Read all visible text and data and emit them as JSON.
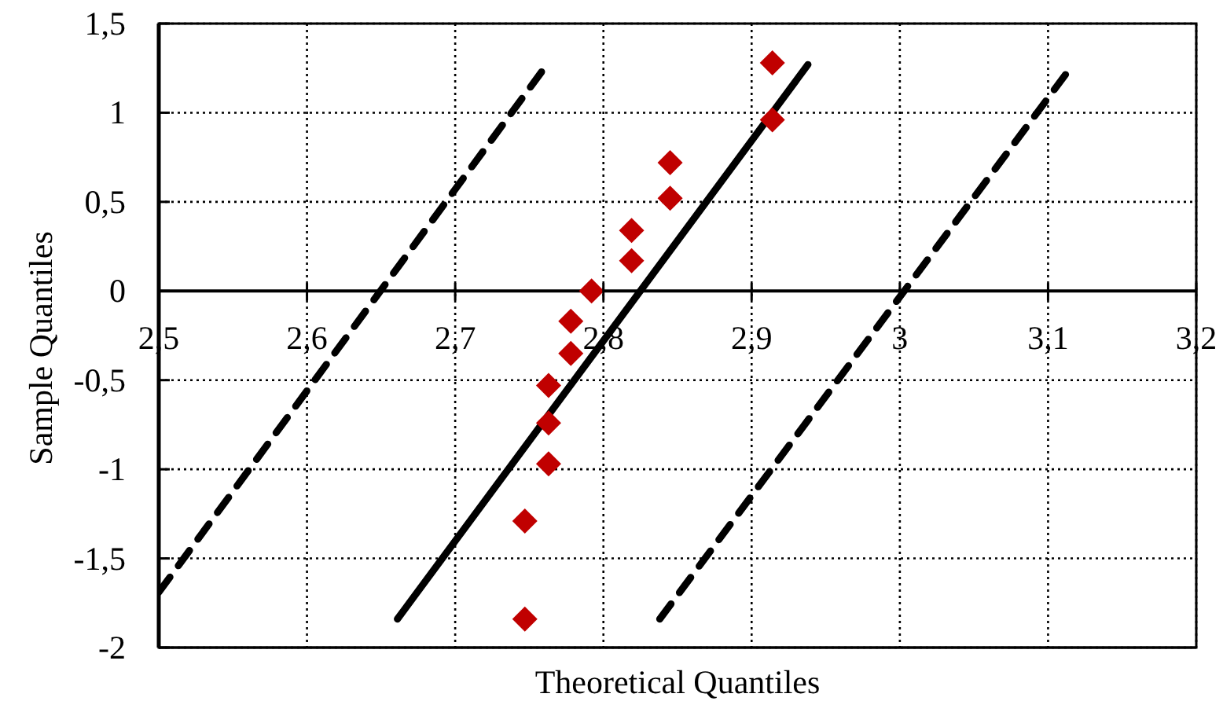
{
  "chart_data": {
    "type": "scatter",
    "xlabel": "Theoretical Quantiles",
    "ylabel": "Sample Quantiles",
    "xlim": [
      2.5,
      3.2
    ],
    "ylim": [
      -2,
      1.5
    ],
    "xticks": [
      {
        "value": 2.5,
        "label": "2,5"
      },
      {
        "value": 2.6,
        "label": "2,6"
      },
      {
        "value": 2.7,
        "label": "2,7"
      },
      {
        "value": 2.8,
        "label": "2,8"
      },
      {
        "value": 2.9,
        "label": "2,9"
      },
      3,
      {
        "value": 3.1,
        "label": "3,1"
      },
      {
        "value": 3.2,
        "label": "3,2"
      }
    ],
    "yticks": [
      -2,
      {
        "value": -1.5,
        "label": "-1,5"
      },
      -1,
      {
        "value": -0.5,
        "label": "-0,5"
      },
      0,
      {
        "value": 0.5,
        "label": "0,5"
      },
      1,
      {
        "value": 1.5,
        "label": "1,5"
      }
    ],
    "grid": true,
    "series": [
      {
        "color": "#c00000",
        "marker": "diamond",
        "x": [
          2.747,
          2.747,
          2.763,
          2.763,
          2.763,
          2.778,
          2.778,
          2.792,
          2.819,
          2.819,
          2.845,
          2.845,
          2.914,
          2.914
        ],
        "values": [
          -1.84,
          -1.29,
          -0.97,
          -0.74,
          -0.53,
          -0.35,
          -0.17,
          0,
          0.17,
          0.34,
          0.52,
          0.72,
          0.96,
          1.28
        ]
      },
      {
        "type": "line",
        "color": "#000000",
        "marker": "none",
        "line_style": "solid",
        "x": [
          2.661,
          2.938
        ],
        "values": [
          -1.84,
          1.27
        ]
      },
      {
        "type": "line",
        "color": "#000000",
        "marker": "none",
        "line_style": "dashed",
        "x": [
          2.5,
          2.761
        ],
        "values": [
          -1.69,
          1.26
        ]
      },
      {
        "type": "line",
        "color": "#000000",
        "marker": "none",
        "line_style": "dashed",
        "x": [
          2.838,
          3.115
        ],
        "values": [
          -1.84,
          1.25
        ]
      }
    ]
  }
}
